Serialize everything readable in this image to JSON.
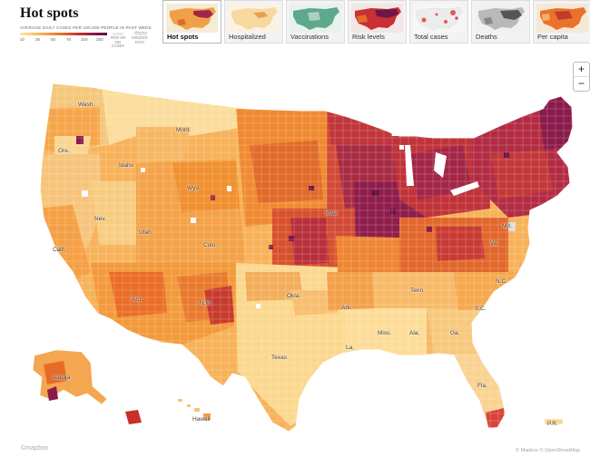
{
  "title": "Hot spots",
  "legend": {
    "caption": "AVERAGE DAILY CASES PER 100,000 PEOPLE IN PAST WEEK",
    "caption_right": "Missing",
    "ticks": [
      "10",
      "30",
      "50",
      "70",
      "100",
      "250"
    ],
    "few_label": "FEW OR NO CASES",
    "missing_label": "MISSING DATA"
  },
  "tabs": [
    {
      "label": "Hot spots",
      "active": true,
      "theme": "hot"
    },
    {
      "label": "Hospitalized",
      "active": false,
      "theme": "pale"
    },
    {
      "label": "Vaccinations",
      "active": false,
      "theme": "green"
    },
    {
      "label": "Risk levels",
      "active": false,
      "theme": "risk"
    },
    {
      "label": "Total cases",
      "active": false,
      "theme": "dots"
    },
    {
      "label": "Deaths",
      "active": false,
      "theme": "gray"
    },
    {
      "label": "Per capita",
      "active": false,
      "theme": "percap"
    }
  ],
  "zoom": {
    "in_label": "+",
    "out_label": "−"
  },
  "state_labels": [
    "Wash.",
    "Ore.",
    "Idaho",
    "Mont.",
    "Wyo.",
    "Nev.",
    "Utah",
    "Calif.",
    "Ariz.",
    "Colo.",
    "N.M.",
    "Okla.",
    "Texas",
    "Ark.",
    "La.",
    "Miss.",
    "Ala.",
    "Ga.",
    "Fla.",
    "Tenn.",
    "S.C.",
    "N.C.",
    "Va.",
    "Md.",
    "Iowa",
    "Alaska",
    "Hawaii",
    "P.R."
  ],
  "credits": {
    "left": "©mapbox",
    "right": "© Mapbox © OpenStreetMap"
  },
  "colors": {
    "scale": [
      "#fbe7a3",
      "#f9c56c",
      "#f59a3a",
      "#e76a26",
      "#c9302c",
      "#8e1a4a",
      "#5b0f3f"
    ],
    "few_or_no": "#e8e8e8"
  }
}
